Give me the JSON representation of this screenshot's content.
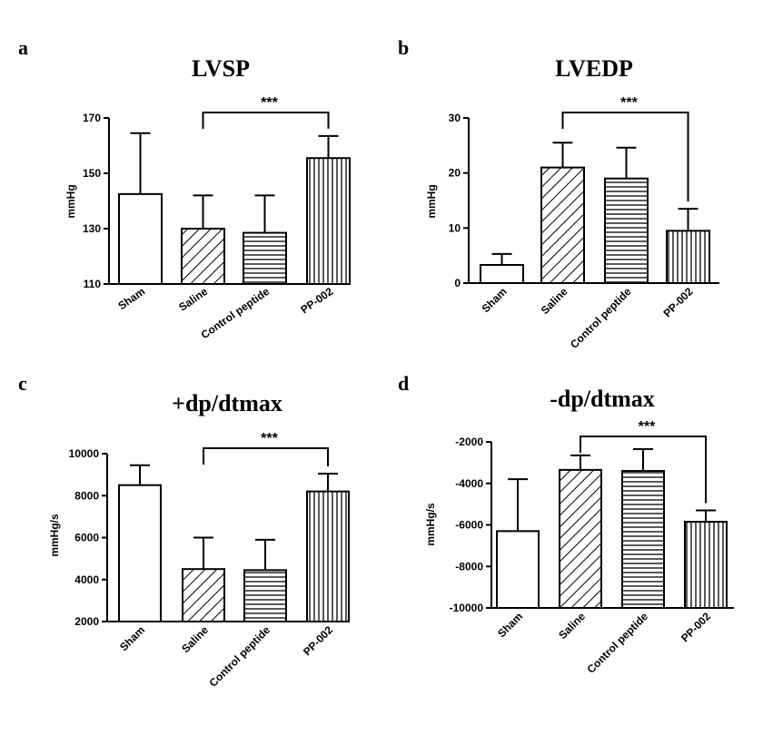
{
  "colors": {
    "background": "#ffffff",
    "bar_stroke": "#000000",
    "bar_fill": "#ffffff",
    "pattern": "#000000"
  },
  "chart_data": [
    {
      "id": "a",
      "panel_letter": "a",
      "type": "bar",
      "title": "LVSP",
      "ylabel": "mmHg",
      "ylim": [
        110,
        170
      ],
      "yticks": [
        110,
        130,
        150,
        170
      ],
      "categories": [
        "Sham",
        "Saline",
        "Control peptide",
        "PP-002"
      ],
      "patterns": [
        "none",
        "diag",
        "horiz",
        "vert"
      ],
      "values": [
        142.5,
        130,
        128.5,
        155.5
      ],
      "errors": [
        22,
        12,
        13.5,
        8
      ],
      "significance": {
        "label": "***",
        "from": 1,
        "to": 3
      },
      "tick_rotation": -35
    },
    {
      "id": "b",
      "panel_letter": "b",
      "type": "bar",
      "title": "LVEDP",
      "ylabel": "mmHg",
      "ylim": [
        0,
        30
      ],
      "yticks": [
        0,
        10,
        20,
        30
      ],
      "categories": [
        "Sham",
        "Saline",
        "Control peptide",
        "PP-002"
      ],
      "patterns": [
        "none",
        "diag",
        "horiz",
        "vert"
      ],
      "values": [
        3.3,
        21,
        19,
        9.5
      ],
      "errors": [
        2,
        4.5,
        5.6,
        4
      ],
      "significance": {
        "label": "***",
        "from": 1,
        "to": 3
      },
      "tick_rotation": -45
    },
    {
      "id": "c",
      "panel_letter": "c",
      "type": "bar",
      "title": "+dp/dtmax",
      "ylabel": "mmHg/s",
      "ylim": [
        2000,
        10000
      ],
      "yticks": [
        2000,
        4000,
        6000,
        8000,
        10000
      ],
      "categories": [
        "Sham",
        "Saline",
        "Control peptide",
        "PP-002"
      ],
      "patterns": [
        "none",
        "diag",
        "horiz",
        "vert"
      ],
      "values": [
        8500,
        4500,
        4450,
        8200
      ],
      "errors": [
        950,
        1500,
        1450,
        850
      ],
      "significance": {
        "label": "***",
        "from": 1,
        "to": 3
      },
      "tick_rotation": -45
    },
    {
      "id": "d",
      "panel_letter": "d",
      "type": "bar",
      "title": "-dp/dtmax",
      "ylabel": "mmHg/s",
      "ylim": [
        -10000,
        -2000
      ],
      "yticks": [
        -10000,
        -8000,
        -6000,
        -4000,
        -2000
      ],
      "categories": [
        "Sham",
        "Saline",
        "Control peptide",
        "PP-002"
      ],
      "patterns": [
        "none",
        "diag",
        "horiz",
        "vert"
      ],
      "values": [
        -6300,
        -3350,
        -3400,
        -5850
      ],
      "errors": [
        2500,
        700,
        1050,
        550
      ],
      "error_direction": "toward-zero",
      "significance": {
        "label": "***",
        "from": 1,
        "to": 3
      },
      "tick_rotation": -45
    }
  ]
}
